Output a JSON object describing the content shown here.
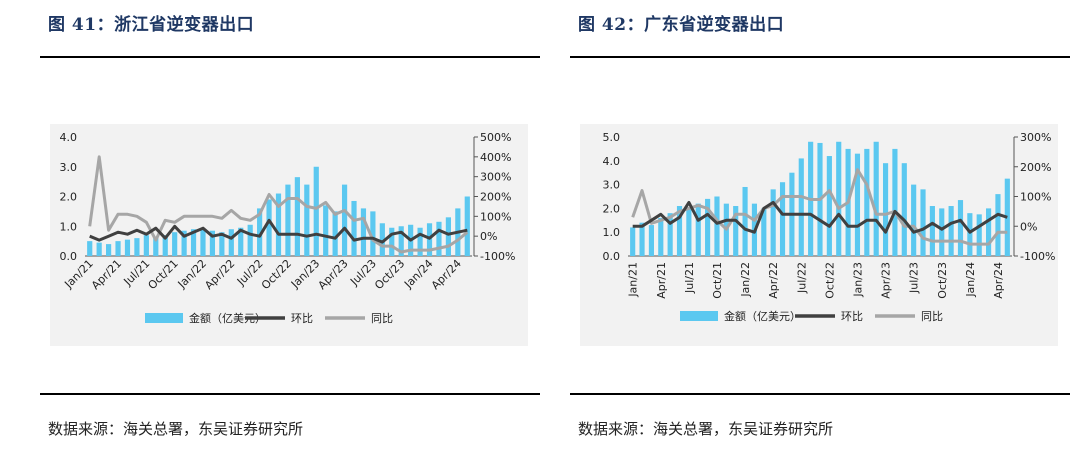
{
  "charts": [
    {
      "title": "图 41：浙江省逆变器出口",
      "source": "数据来源：海关总署，东吴证券研究所",
      "legend": {
        "bar": "金额（亿美元）",
        "line1": "环比",
        "line2": "同比"
      },
      "colors": {
        "bar": "#5bc8f0",
        "line1": "#404040",
        "line2": "#a6a6a6",
        "title": "#1f3864"
      }
    },
    {
      "title": "图 42：广东省逆变器出口",
      "source": "数据来源：海关总署，东吴证券研究所",
      "legend": {
        "bar": "金额（亿美元）",
        "line1": "环比",
        "line2": "同比"
      },
      "colors": {
        "bar": "#5bc8f0",
        "line1": "#404040",
        "line2": "#a6a6a6",
        "title": "#1f3864"
      }
    }
  ],
  "chart_data": [
    {
      "type": "bar+line",
      "title": "图 41：浙江省逆变器出口",
      "categories": [
        "Jan/21",
        "Feb/21",
        "Mar/21",
        "Apr/21",
        "May/21",
        "Jun/21",
        "Jul/21",
        "Aug/21",
        "Sep/21",
        "Oct/21",
        "Nov/21",
        "Dec/21",
        "Jan/22",
        "Feb/22",
        "Mar/22",
        "Apr/22",
        "May/22",
        "Jun/22",
        "Jul/22",
        "Aug/22",
        "Sep/22",
        "Oct/22",
        "Nov/22",
        "Dec/22",
        "Jan/23",
        "Feb/23",
        "Mar/23",
        "Apr/23",
        "May/23",
        "Jun/23",
        "Jul/23",
        "Aug/23",
        "Sep/23",
        "Oct/23",
        "Nov/23",
        "Dec/23",
        "Jan/24",
        "Feb/24",
        "Mar/24",
        "Apr/24",
        "May/24"
      ],
      "tick_labels": [
        "Jan/21",
        "Apr/21",
        "Jul/21",
        "Oct/21",
        "Jan/22",
        "Apr/22",
        "Jul/22",
        "Oct/22",
        "Jan/23",
        "Apr/23",
        "Jul/23",
        "Oct/23",
        "Jan/24",
        "Apr/24"
      ],
      "series": [
        {
          "name": "金额（亿美元）",
          "kind": "bar",
          "axis": "left",
          "values": [
            0.5,
            0.45,
            0.4,
            0.5,
            0.55,
            0.6,
            0.7,
            0.65,
            0.7,
            0.8,
            0.85,
            0.9,
            0.9,
            0.85,
            0.8,
            0.9,
            0.95,
            1.05,
            1.6,
            1.9,
            2.1,
            2.4,
            2.65,
            2.4,
            3.0,
            1.7,
            1.5,
            2.4,
            1.85,
            1.6,
            1.5,
            1.1,
            0.95,
            1.0,
            1.05,
            0.95,
            1.1,
            1.15,
            1.3,
            1.6,
            2.0
          ]
        },
        {
          "name": "环比",
          "kind": "line",
          "axis": "right",
          "values": [
            0,
            -20,
            0,
            20,
            10,
            30,
            10,
            40,
            -10,
            50,
            0,
            20,
            40,
            0,
            10,
            -10,
            30,
            10,
            0,
            80,
            10,
            10,
            10,
            0,
            10,
            0,
            -10,
            40,
            -20,
            -10,
            -10,
            -30,
            10,
            20,
            -20,
            10,
            -10,
            30,
            10,
            20,
            30
          ]
        },
        {
          "name": "同比",
          "kind": "line",
          "axis": "right",
          "values": [
            50,
            400,
            30,
            110,
            110,
            100,
            70,
            -20,
            80,
            70,
            100,
            100,
            100,
            100,
            90,
            130,
            90,
            80,
            110,
            210,
            150,
            190,
            190,
            150,
            140,
            170,
            110,
            130,
            80,
            90,
            -20,
            -50,
            -50,
            -80,
            -70,
            -70,
            -70,
            -60,
            -50,
            -20,
            20
          ]
        }
      ],
      "y_left": {
        "range": [
          0,
          4.0
        ],
        "ticks": [
          "0.0",
          "1.0",
          "2.0",
          "3.0",
          "4.0"
        ]
      },
      "y_right": {
        "range": [
          -100,
          500
        ],
        "ticks": [
          "-100%",
          "0%",
          "100%",
          "200%",
          "300%",
          "400%",
          "500%"
        ]
      },
      "legend_position": "bottom"
    },
    {
      "type": "bar+line",
      "title": "图 42：广东省逆变器出口",
      "categories": [
        "Jan/21",
        "Feb/21",
        "Mar/21",
        "Apr/21",
        "May/21",
        "Jun/21",
        "Jul/21",
        "Aug/21",
        "Sep/21",
        "Oct/21",
        "Nov/21",
        "Dec/21",
        "Jan/22",
        "Feb/22",
        "Mar/22",
        "Apr/22",
        "May/22",
        "Jun/22",
        "Jul/22",
        "Aug/22",
        "Sep/22",
        "Oct/22",
        "Nov/22",
        "Dec/22",
        "Jan/23",
        "Feb/23",
        "Mar/23",
        "Apr/23",
        "May/23",
        "Jun/23",
        "Jul/23",
        "Aug/23",
        "Sep/23",
        "Oct/23",
        "Nov/23",
        "Dec/23",
        "Jan/24",
        "Feb/24",
        "Mar/24",
        "Apr/24",
        "May/24"
      ],
      "tick_labels": [
        "Jan/21",
        "Apr/21",
        "Jul/21",
        "Oct/21",
        "Jan/22",
        "Apr/22",
        "Jul/22",
        "Oct/22",
        "Jan/23",
        "Apr/23",
        "Jul/23",
        "Oct/23",
        "Jan/24",
        "Apr/24"
      ],
      "series": [
        {
          "name": "金额（亿美元）",
          "kind": "bar",
          "axis": "left",
          "values": [
            1.2,
            1.4,
            1.3,
            1.6,
            1.8,
            2.1,
            2.0,
            2.2,
            2.4,
            2.5,
            2.2,
            2.1,
            2.9,
            2.2,
            2.0,
            2.8,
            3.1,
            3.5,
            4.1,
            4.8,
            4.75,
            4.2,
            4.8,
            4.5,
            4.3,
            4.5,
            4.8,
            3.9,
            4.5,
            3.9,
            3.0,
            2.8,
            2.1,
            2.0,
            2.1,
            2.35,
            1.8,
            1.75,
            2.0,
            2.6,
            3.25
          ]
        },
        {
          "name": "环比",
          "kind": "line",
          "axis": "right",
          "values": [
            0,
            0,
            20,
            40,
            10,
            30,
            80,
            20,
            40,
            10,
            20,
            20,
            -10,
            -20,
            60,
            80,
            40,
            40,
            40,
            40,
            20,
            0,
            40,
            0,
            0,
            20,
            20,
            -20,
            50,
            20,
            -20,
            -10,
            10,
            -10,
            10,
            20,
            -20,
            0,
            20,
            40,
            30
          ]
        },
        {
          "name": "同比",
          "kind": "line",
          "axis": "right",
          "values": [
            30,
            120,
            10,
            20,
            30,
            50,
            60,
            70,
            60,
            20,
            -10,
            40,
            40,
            20,
            60,
            70,
            100,
            100,
            100,
            90,
            90,
            120,
            60,
            80,
            190,
            140,
            40,
            40,
            50,
            0,
            0,
            -40,
            -50,
            -50,
            -50,
            -50,
            -60,
            -60,
            -60,
            -20,
            -20
          ]
        }
      ],
      "y_left": {
        "range": [
          0,
          5.0
        ],
        "ticks": [
          "0.0",
          "1.0",
          "2.0",
          "3.0",
          "4.0",
          "5.0"
        ]
      },
      "y_right": {
        "range": [
          -100,
          300
        ],
        "ticks": [
          "-100%",
          "0%",
          "100%",
          "200%",
          "300%"
        ]
      },
      "legend_position": "bottom"
    }
  ]
}
